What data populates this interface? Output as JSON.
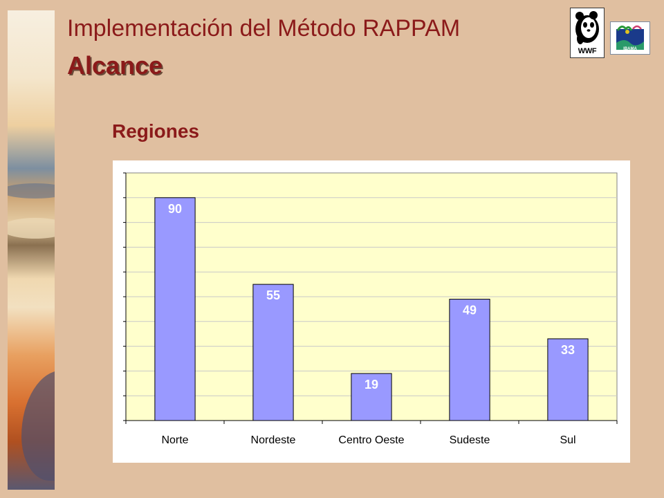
{
  "header": {
    "title": "Implementación del Método RAPPAM",
    "subtitle": "Alcance"
  },
  "logos": {
    "wwf": {
      "name": "wwf-logo",
      "text": "WWF"
    },
    "ibama": {
      "name": "ibama-logo",
      "text": "IBAMA"
    }
  },
  "section": {
    "heading": "Regiones"
  },
  "colors": {
    "bar_fill": "#9999ff",
    "plot_background": "#ffffcc",
    "title": "#8b1a1a",
    "slide_background": "#e0bfa0"
  },
  "chart_data": {
    "type": "bar",
    "categories": [
      "Norte",
      "Nordeste",
      "Centro Oeste",
      "Sudeste",
      "Sul"
    ],
    "values": [
      90,
      55,
      19,
      49,
      33
    ],
    "title": "",
    "xlabel": "",
    "ylabel": "",
    "ylim": [
      0,
      100
    ],
    "gridlines": true,
    "data_labels": "inside-top",
    "legend": "none"
  }
}
